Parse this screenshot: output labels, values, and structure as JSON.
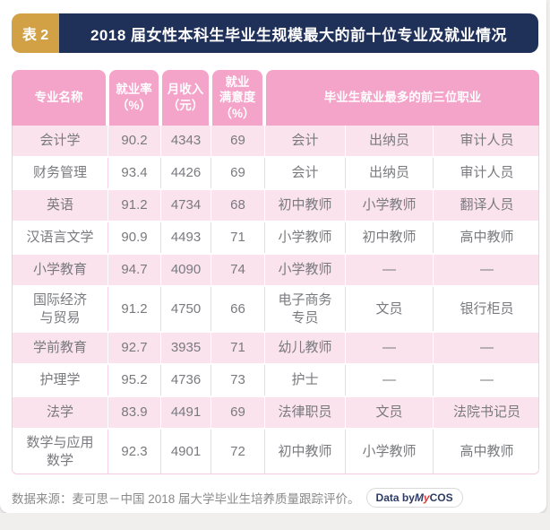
{
  "colors": {
    "gold": "#D2A045",
    "navy": "#1F3059",
    "header_pink": "#F4A3C9",
    "row_pink": "#FBE3EE",
    "border_pink": "#F3CBE0",
    "text_gray": "#797A7E",
    "footer_gray": "#8A8A8A",
    "badge_navy": "#2E3B64",
    "brand_red": "#D93A35"
  },
  "header": {
    "tag": "表 2",
    "title": "2018 届女性本科生毕业生规模最大的前十位专业及就业情况"
  },
  "chart_data": {
    "type": "table",
    "columns": [
      "专业名称",
      "就业率（%）",
      "月收入（元）",
      "就业满意度（%）",
      "毕业生就业最多的前三位职业"
    ],
    "column_display": [
      "专业名称",
      "就业率\n（%）",
      "月收入\n（元）",
      "就业\n满意度\n（%）",
      "毕业生就业最多的前三位职业"
    ],
    "job_subcolumns": 3,
    "rows": [
      {
        "cells": [
          "会计学",
          "90.2",
          "4343",
          "69",
          "会计",
          "出纳员",
          "审计人员"
        ]
      },
      {
        "cells": [
          "财务管理",
          "93.4",
          "4426",
          "69",
          "会计",
          "出纳员",
          "审计人员"
        ]
      },
      {
        "cells": [
          "英语",
          "91.2",
          "4734",
          "68",
          "初中教师",
          "小学教师",
          "翻译人员"
        ]
      },
      {
        "cells": [
          "汉语言文学",
          "90.9",
          "4493",
          "71",
          "小学教师",
          "初中教师",
          "高中教师"
        ]
      },
      {
        "cells": [
          "小学教育",
          "94.7",
          "4090",
          "74",
          "小学教师",
          "—",
          "—"
        ]
      },
      {
        "cells": [
          "国际经济\n与贸易",
          "91.2",
          "4750",
          "66",
          "电子商务\n专员",
          "文员",
          "银行柜员"
        ]
      },
      {
        "cells": [
          "学前教育",
          "92.7",
          "3935",
          "71",
          "幼儿教师",
          "—",
          "—"
        ]
      },
      {
        "cells": [
          "护理学",
          "95.2",
          "4736",
          "73",
          "护士",
          "—",
          "—"
        ]
      },
      {
        "cells": [
          "法学",
          "83.9",
          "4491",
          "69",
          "法律职员",
          "文员",
          "法院书记员"
        ]
      },
      {
        "cells": [
          "数学与应用\n数学",
          "92.3",
          "4901",
          "72",
          "初中教师",
          "小学教师",
          "高中教师"
        ]
      }
    ]
  },
  "footer": {
    "source": "数据来源：麦可思－中国 2018 届大学毕业生培养质量跟踪评价。",
    "badge": {
      "prefix": "Data by ",
      "brand_m": "M",
      "brand_y": "y",
      "brand_cos": "COS"
    }
  }
}
